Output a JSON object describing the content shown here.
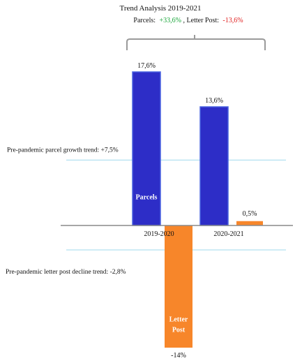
{
  "chart_data": {
    "type": "bar",
    "title": "Trend Analysis 2019-2021",
    "subtitle": {
      "parcels_label": "Parcels:",
      "parcels_value": "+33,6%",
      "letter_label": ", Letter Post:",
      "letter_value": "-13,6%"
    },
    "categories": [
      "2019-2020",
      "2020-2021"
    ],
    "series": [
      {
        "name": "Parcels",
        "values": [
          17.6,
          13.6
        ],
        "labels": [
          "17,6%",
          "13,6%"
        ],
        "color": "#2d2dc7"
      },
      {
        "name": "Letter Post",
        "values": [
          -14,
          0.5
        ],
        "labels": [
          "-14%",
          "0,5%"
        ],
        "color": "#f7862a"
      }
    ],
    "series_labels": {
      "parcels": "Parcels",
      "letter_line1": "Letter",
      "letter_line2": "Post"
    },
    "reference_lines": [
      {
        "label": "Pre-pandemic parcel growth trend:  +7,5%",
        "value": 7.5,
        "color": "#9fd9ee"
      },
      {
        "label": "Pre-pandemic letter post decline trend: -2,8%",
        "value": -2.8,
        "color": "#9fd9ee"
      }
    ],
    "colors": {
      "positive_text": "#1aa63a",
      "negative_text": "#e02020",
      "axis": "#8a8a8a",
      "bracket": "#9a9a9a"
    }
  }
}
